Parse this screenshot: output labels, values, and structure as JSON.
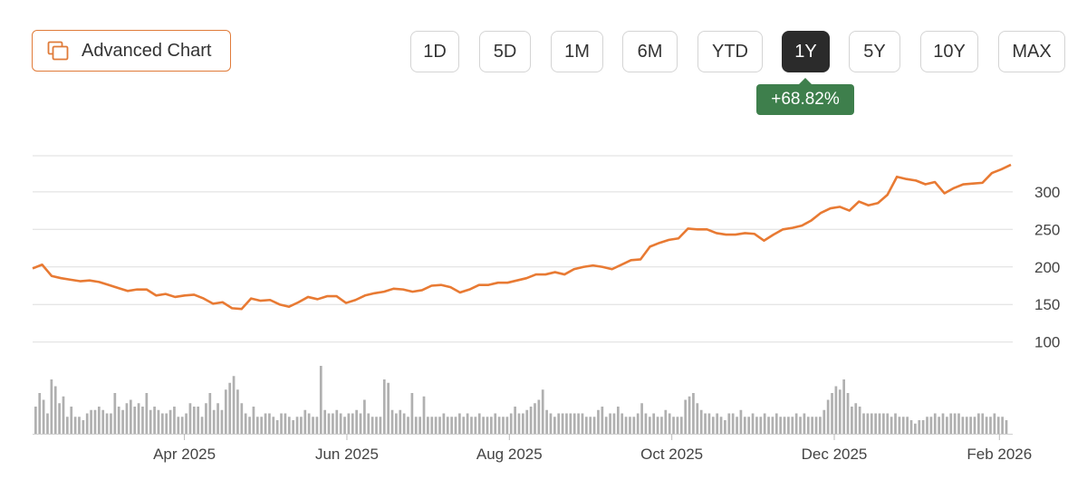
{
  "toolbar": {
    "advanced_chart_label": "Advanced Chart",
    "advanced_chart_icon": "layers-icon",
    "ranges": [
      {
        "label": "1D",
        "active": false
      },
      {
        "label": "5D",
        "active": false
      },
      {
        "label": "1M",
        "active": false
      },
      {
        "label": "6M",
        "active": false
      },
      {
        "label": "YTD",
        "active": false
      },
      {
        "label": "1Y",
        "active": true
      },
      {
        "label": "5Y",
        "active": false
      },
      {
        "label": "10Y",
        "active": false
      },
      {
        "label": "MAX",
        "active": false
      }
    ],
    "change_badge": "+68.82%"
  },
  "colors": {
    "accent": "#e07b39",
    "line": "#e87a33",
    "badge_green": "#3e7f4c",
    "active_range": "#2b2b2b",
    "volume_bar": "#b0b0b0",
    "grid": "#dddddd"
  },
  "chart_data": {
    "type": "line",
    "x_axis_type": "date",
    "x_range": [
      "2025-02-03",
      "2026-02-06"
    ],
    "ylim": [
      90,
      348
    ],
    "y_ticks": [
      100,
      150,
      200,
      250,
      300
    ],
    "x_tick_labels": [
      "Apr 2025",
      "Jun 2025",
      "Aug 2025",
      "Oct 2025",
      "Dec 2025",
      "Feb 2026"
    ],
    "x_tick_dates": [
      "2025-04-01",
      "2025-06-01",
      "2025-08-01",
      "2025-10-01",
      "2025-12-01",
      "2026-02-01"
    ],
    "grid": true,
    "price": [
      [
        "2025-02-03",
        198
      ],
      [
        "2025-02-05",
        203
      ],
      [
        "2025-02-08",
        188
      ],
      [
        "2025-02-12",
        185
      ],
      [
        "2025-02-17",
        183
      ],
      [
        "2025-02-22",
        181
      ],
      [
        "2025-02-27",
        182
      ],
      [
        "2025-03-04",
        180
      ],
      [
        "2025-03-08",
        176
      ],
      [
        "2025-03-12",
        172
      ],
      [
        "2025-03-16",
        168
      ],
      [
        "2025-03-20",
        170
      ],
      [
        "2025-03-24",
        170
      ],
      [
        "2025-03-28",
        162
      ],
      [
        "2025-04-01",
        164
      ],
      [
        "2025-04-05",
        160
      ],
      [
        "2025-04-09",
        162
      ],
      [
        "2025-04-13",
        163
      ],
      [
        "2025-04-17",
        158
      ],
      [
        "2025-04-22",
        151
      ],
      [
        "2025-04-26",
        153
      ],
      [
        "2025-04-30",
        145
      ],
      [
        "2025-05-03",
        144
      ],
      [
        "2025-05-06",
        158
      ],
      [
        "2025-05-10",
        155
      ],
      [
        "2025-05-14",
        156
      ],
      [
        "2025-05-18",
        150
      ],
      [
        "2025-05-22",
        147
      ],
      [
        "2025-05-26",
        153
      ],
      [
        "2025-05-30",
        160
      ],
      [
        "2025-06-03",
        157
      ],
      [
        "2025-06-07",
        161
      ],
      [
        "2025-06-11",
        161
      ],
      [
        "2025-06-14",
        152
      ],
      [
        "2025-06-18",
        156
      ],
      [
        "2025-06-22",
        162
      ],
      [
        "2025-06-26",
        165
      ],
      [
        "2025-06-30",
        167
      ],
      [
        "2025-07-04",
        171
      ],
      [
        "2025-07-08",
        170
      ],
      [
        "2025-07-12",
        167
      ],
      [
        "2025-07-16",
        169
      ],
      [
        "2025-07-20",
        175
      ],
      [
        "2025-07-24",
        176
      ],
      [
        "2025-07-28",
        173
      ],
      [
        "2025-08-01",
        166
      ],
      [
        "2025-08-05",
        170
      ],
      [
        "2025-08-09",
        176
      ],
      [
        "2025-08-13",
        176
      ],
      [
        "2025-08-17",
        179
      ],
      [
        "2025-08-21",
        179
      ],
      [
        "2025-08-25",
        182
      ],
      [
        "2025-08-29",
        185
      ],
      [
        "2025-09-02",
        190
      ],
      [
        "2025-09-06",
        190
      ],
      [
        "2025-09-10",
        193
      ],
      [
        "2025-09-14",
        190
      ],
      [
        "2025-09-18",
        197
      ],
      [
        "2025-09-22",
        200
      ],
      [
        "2025-09-26",
        202
      ],
      [
        "2025-09-30",
        200
      ],
      [
        "2025-10-04",
        197
      ],
      [
        "2025-10-08",
        203
      ],
      [
        "2025-10-12",
        209
      ],
      [
        "2025-10-16",
        210
      ],
      [
        "2025-10-18",
        227
      ],
      [
        "2025-10-22",
        232
      ],
      [
        "2025-10-26",
        236
      ],
      [
        "2025-10-30",
        238
      ],
      [
        "2025-11-03",
        251
      ],
      [
        "2025-11-07",
        250
      ],
      [
        "2025-11-11",
        250
      ],
      [
        "2025-11-15",
        245
      ],
      [
        "2025-11-19",
        243
      ],
      [
        "2025-11-23",
        243
      ],
      [
        "2025-11-27",
        245
      ],
      [
        "2025-12-01",
        244
      ],
      [
        "2025-12-05",
        235
      ],
      [
        "2025-12-09",
        243
      ],
      [
        "2025-12-13",
        250
      ],
      [
        "2025-12-17",
        252
      ],
      [
        "2025-12-21",
        255
      ],
      [
        "2025-12-25",
        262
      ],
      [
        "2025-12-29",
        272
      ],
      [
        "2026-01-02",
        278
      ],
      [
        "2026-01-06",
        280
      ],
      [
        "2026-01-10",
        275
      ],
      [
        "2026-01-14",
        287
      ],
      [
        "2026-01-18",
        282
      ],
      [
        "2026-01-22",
        285
      ],
      [
        "2026-01-24",
        296
      ],
      [
        "2026-01-26",
        320
      ],
      [
        "2026-01-28",
        317
      ],
      [
        "2026-01-30",
        315
      ],
      [
        "2026-02-01",
        310
      ],
      [
        "2026-02-02",
        313
      ],
      [
        "2026-02-03",
        298
      ],
      [
        "2026-02-04",
        305
      ],
      [
        "2026-02-04",
        310
      ],
      [
        "2026-02-05",
        311
      ],
      [
        "2026-02-05",
        312
      ],
      [
        "2026-02-06",
        325
      ],
      [
        "2026-02-06",
        330
      ],
      [
        "2026-02-06",
        336
      ]
    ],
    "volume": [
      8,
      12,
      10,
      6,
      16,
      14,
      9,
      11,
      5,
      8,
      5,
      5,
      4,
      6,
      7,
      7,
      8,
      7,
      6,
      6,
      12,
      8,
      7,
      9,
      10,
      8,
      9,
      8,
      12,
      7,
      8,
      7,
      6,
      6,
      7,
      8,
      5,
      5,
      6,
      9,
      8,
      8,
      5,
      9,
      12,
      7,
      9,
      7,
      13,
      15,
      17,
      13,
      9,
      6,
      5,
      8,
      5,
      5,
      6,
      6,
      5,
      4,
      6,
      6,
      5,
      4,
      5,
      5,
      7,
      6,
      5,
      5,
      20,
      7,
      6,
      6,
      7,
      6,
      5,
      6,
      6,
      7,
      6,
      10,
      6,
      5,
      5,
      5,
      16,
      15,
      7,
      6,
      7,
      6,
      5,
      12,
      5,
      5,
      11,
      5,
      5,
      5,
      5,
      6,
      5,
      5,
      5,
      6,
      5,
      6,
      5,
      5,
      6,
      5,
      5,
      5,
      6,
      5,
      5,
      5,
      6,
      8,
      6,
      6,
      7,
      8,
      9,
      10,
      13,
      7,
      6,
      5,
      6,
      6,
      6,
      6,
      6,
      6,
      6,
      5,
      5,
      5,
      7,
      8,
      5,
      6,
      6,
      8,
      6,
      5,
      5,
      5,
      6,
      9,
      6,
      5,
      6,
      5,
      5,
      7,
      6,
      5,
      5,
      5,
      10,
      11,
      12,
      9,
      7,
      6,
      6,
      5,
      6,
      5,
      4,
      6,
      6,
      5,
      7,
      5,
      5,
      6,
      5,
      5,
      6,
      5,
      5,
      6,
      5,
      5,
      5,
      5,
      6,
      5,
      6,
      5,
      5,
      5,
      5,
      7,
      10,
      12,
      14,
      13,
      16,
      12,
      8,
      9,
      8,
      6,
      6,
      6,
      6,
      6,
      6,
      6,
      5,
      6,
      5,
      5,
      5,
      4,
      3,
      4,
      4,
      5,
      5,
      6,
      5,
      6,
      5,
      6,
      6,
      6,
      5,
      5,
      5,
      5,
      6,
      6,
      5,
      5,
      6,
      5,
      5,
      4
    ]
  }
}
